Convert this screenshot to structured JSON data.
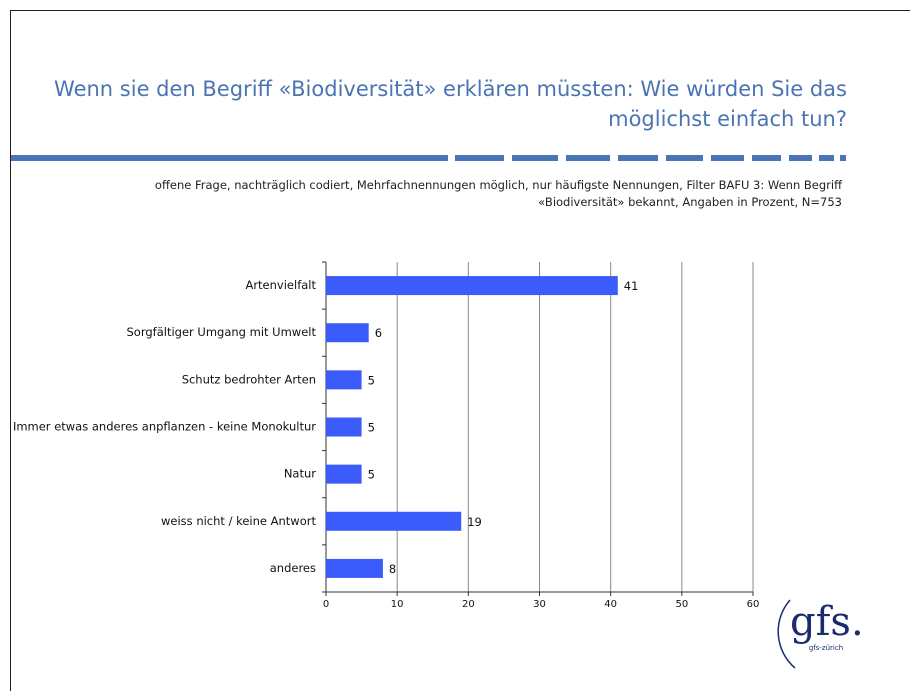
{
  "chart_data": {
    "type": "bar",
    "orientation": "horizontal",
    "title": [
      "Wenn sie den Begriff «Biodiversität» erklären müssten: Wie würden Sie das",
      "möglichst einfach tun?"
    ],
    "subtitle": [
      "offene Frage, nachträglich codiert, Mehrfachnennungen möglich, nur häufigste Nennungen, Filter BAFU 3: Wenn Begriff",
      "«Biodiversität» bekannt, Angaben in Prozent, N=753"
    ],
    "categories": [
      "Artenvielfalt",
      "Sorgfältiger Umgang mit Umwelt",
      "Schutz bedrohter Arten",
      "Immer etwas anderes anpflanzen - keine Monokultur",
      "Natur",
      "weiss nicht / keine Antwort",
      "anderes"
    ],
    "values": [
      41,
      6,
      5,
      5,
      5,
      19,
      8
    ],
    "color": "#3b5bfa",
    "xlim": [
      0,
      60
    ],
    "xticks": [
      0,
      10,
      20,
      30,
      40,
      50,
      60
    ],
    "grid": true
  },
  "logo": {
    "text": "gfs.",
    "subtext": "gfs-zürich"
  }
}
